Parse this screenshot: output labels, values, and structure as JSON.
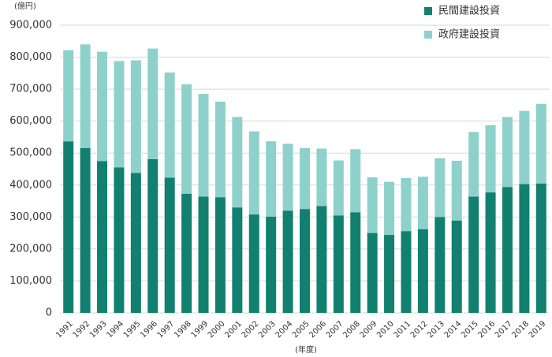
{
  "chart_data": {
    "type": "stacked_bar",
    "y_unit_label": "(億円)",
    "x_label": "(年度)",
    "categories": [
      "1991",
      "1992",
      "1993",
      "1994",
      "1995",
      "1996",
      "1997",
      "1998",
      "1999",
      "2000",
      "2001",
      "2002",
      "2003",
      "2004",
      "2005",
      "2006",
      "2007",
      "2008",
      "2009",
      "2010",
      "2011",
      "2012",
      "2013",
      "2014",
      "2015",
      "2016",
      "2017",
      "2018",
      "2019"
    ],
    "series": [
      {
        "name": "民間建設投資",
        "color": "#12806f",
        "values": [
          537000,
          516000,
          475000,
          455000,
          438000,
          481000,
          423000,
          373000,
          364000,
          362000,
          330000,
          308000,
          301000,
          320000,
          325000,
          334000,
          305000,
          315000,
          250000,
          244000,
          256000,
          262000,
          300000,
          289000,
          364000,
          377000,
          394000,
          403000,
          405000
        ]
      },
      {
        "name": "政府建設投資",
        "color": "#8ed1cb",
        "values": [
          285000,
          324000,
          342000,
          333000,
          352000,
          346000,
          329000,
          342000,
          321000,
          299000,
          283000,
          260000,
          236000,
          209000,
          191000,
          180000,
          172000,
          197000,
          174000,
          166000,
          166000,
          164000,
          184000,
          187000,
          202000,
          210000,
          219000,
          229000,
          249000
        ]
      }
    ],
    "ylim": [
      0,
      900000
    ],
    "yticks": [
      0,
      {
        "value": 100000,
        "label": "100,000"
      },
      {
        "value": 200000,
        "label": "200,000"
      },
      {
        "value": 300000,
        "label": "300,000"
      },
      {
        "value": 400000,
        "label": "400,000"
      },
      {
        "value": 500000,
        "label": "500,000"
      },
      {
        "value": 600000,
        "label": "600,000"
      },
      {
        "value": 700000,
        "label": "700,000"
      },
      {
        "value": 800000,
        "label": "800,000"
      },
      {
        "value": 900000,
        "label": "900,000"
      }
    ],
    "grid": true,
    "legend": "top-right"
  }
}
